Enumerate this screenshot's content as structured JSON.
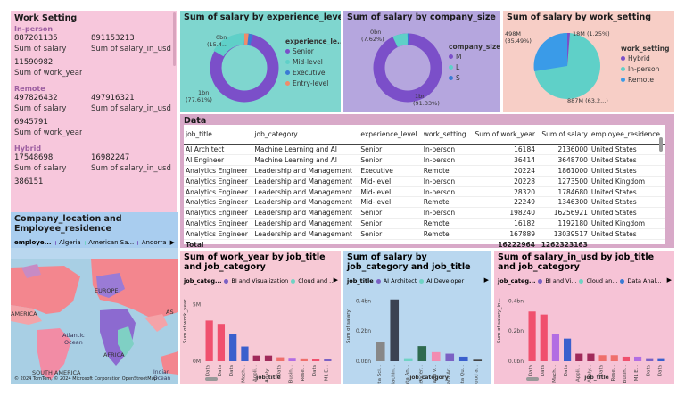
{
  "work_setting": {
    "title": "Work Setting",
    "groups": [
      {
        "name": "In-person",
        "salary": "887201135",
        "salary_in_usd": "891153213",
        "salary_label": "Sum of salary",
        "usd_label": "Sum of salary_in_usd",
        "work_year": "11590982",
        "work_year_label": "Sum of work_year"
      },
      {
        "name": "Remote",
        "salary": "497826432",
        "salary_in_usd": "497916321",
        "salary_label": "Sum of salary",
        "usd_label": "Sum of salary_in_usd",
        "work_year": "6945791",
        "work_year_label": "Sum of work_year"
      },
      {
        "name": "Hybrid",
        "salary": "17548698",
        "salary_in_usd": "16982247",
        "salary_label": "Sum of salary",
        "usd_label": "Sum of salary_in_usd",
        "work_year": "386151",
        "work_year_label": ""
      }
    ]
  },
  "map": {
    "title": "Company_location and Employee_residence",
    "legend_label": "employe...",
    "legend": [
      {
        "name": "Algeria",
        "color": "#7b61c4"
      },
      {
        "name": "American Sa...",
        "color": "#6fd3c4"
      },
      {
        "name": "Andorra",
        "color": "#7b61c4"
      }
    ],
    "labels": {
      "america": "AMERICA",
      "europe": "EUROPE",
      "africa": "AFRICA",
      "south_america": "SOUTH AMERICA",
      "asia": "AS",
      "atlantic": "Atlantic",
      "ocean": "Ocean",
      "indian": "Indian",
      "indian_ocean": "Ocean",
      "copyright": "© 2024 TomTom, © 2024 Microsoft Corporation  OpenStreetMap"
    }
  },
  "donut_exp": {
    "title": "Sum of salary by experience_level",
    "legend_title": "experience_le...",
    "labels": {
      "top": "0bn",
      "top2": "(15.4...",
      "bottom": "1bn",
      "bottom2": "(77.61%)"
    },
    "items": [
      {
        "name": "Senior",
        "color": "#7b4fc9"
      },
      {
        "name": "Mid-level",
        "color": "#5fd0c8"
      },
      {
        "name": "Executive",
        "color": "#3a7bd5"
      },
      {
        "name": "Entry-level",
        "color": "#f08c6a"
      }
    ]
  },
  "donut_size": {
    "title": "Sum of salary by company_size",
    "legend_title": "company_size",
    "labels": {
      "top": "0bn",
      "top2": "(7.62%)",
      "bottom": "1bn",
      "bottom2": "(91.33%)"
    },
    "items": [
      {
        "name": "M",
        "color": "#7b4fc9"
      },
      {
        "name": "L",
        "color": "#5fd0c8"
      },
      {
        "name": "S",
        "color": "#3a7bd5"
      }
    ]
  },
  "donut_setting": {
    "title": "Sum of salary by work_setting",
    "legend_title": "work_setting",
    "labels": {
      "left": "498M",
      "left2": "(35.49%)",
      "top": "18M (1.25%)",
      "bottom": "887M (63.2...)"
    },
    "items": [
      {
        "name": "Hybrid",
        "color": "#7b4fc9"
      },
      {
        "name": "In-person",
        "color": "#5fd0c8"
      },
      {
        "name": "Remote",
        "color": "#3a9be8"
      }
    ]
  },
  "table": {
    "title": "Data",
    "columns": [
      "job_title",
      "job_category",
      "experience_level",
      "work_setting",
      "Sum of work_year",
      "Sum of salary",
      "employee_residence"
    ],
    "rows": [
      [
        "AI Architect",
        "Machine Learning and AI",
        "Senior",
        "In-person",
        "16184",
        "2136000",
        "United States"
      ],
      [
        "AI Engineer",
        "Machine Learning and AI",
        "Senior",
        "In-person",
        "36414",
        "3648700",
        "United States"
      ],
      [
        "Analytics Engineer",
        "Leadership and Management",
        "Executive",
        "Remote",
        "20224",
        "1861000",
        "United States"
      ],
      [
        "Analytics Engineer",
        "Leadership and Management",
        "Mid-level",
        "In-person",
        "20228",
        "1273500",
        "United Kingdom"
      ],
      [
        "Analytics Engineer",
        "Leadership and Management",
        "Mid-level",
        "In-person",
        "28320",
        "1784680",
        "United States"
      ],
      [
        "Analytics Engineer",
        "Leadership and Management",
        "Mid-level",
        "Remote",
        "22249",
        "1346300",
        "United States"
      ],
      [
        "Analytics Engineer",
        "Leadership and Management",
        "Senior",
        "In-person",
        "198240",
        "16256921",
        "United States"
      ],
      [
        "Analytics Engineer",
        "Leadership and Management",
        "Senior",
        "Remote",
        "16182",
        "1192180",
        "United Kingdom"
      ],
      [
        "Analytics Engineer",
        "Leadership and Management",
        "Senior",
        "Remote",
        "167889",
        "13039517",
        "United States"
      ]
    ],
    "total_label": "Total",
    "total_work_year": "16222964",
    "total_salary": "1262323163"
  },
  "bar_work_year": {
    "title": "Sum of work_year by job_title and job_category",
    "legend_label": "job_categ...",
    "legend": [
      {
        "name": "BI and Visualization",
        "color": "#7b61c4"
      },
      {
        "name": "Cloud and ...",
        "color": "#6fd3c4"
      }
    ],
    "ylabel": "Sum of work_year",
    "xlabel": "job_title",
    "yticks": [
      "5M",
      "0M"
    ],
    "xticks": [
      "Data",
      "Data",
      "Data",
      "Mach...",
      "Appli...",
      "Analy...",
      "Data",
      "Busin...",
      "Rese...",
      "Data",
      "ML E..."
    ]
  },
  "bar_salary_cat": {
    "title": "Sum of salary by job_category and job_title",
    "legend_label": "job_title",
    "legend": [
      {
        "name": "AI Architect",
        "color": "#7b61c4"
      },
      {
        "name": "AI Developer",
        "color": "#6fd3c4"
      }
    ],
    "ylabel": "Sum of salary",
    "xlabel": "job_category",
    "yticks": [
      "0.4bn",
      "0.2bn",
      "0.0bn"
    ],
    "xticks": [
      "Data Sci...",
      "Machin...",
      "Data An...",
      "Leader...",
      "BI and V...",
      "Data Ar...",
      "Data Qu...",
      "Cloud a..."
    ]
  },
  "bar_usd": {
    "title": "Sum of salary_in_usd by job_title and job_category",
    "legend_label": "job_categ...",
    "legend": [
      {
        "name": "BI and Vi...",
        "color": "#7b61c4"
      },
      {
        "name": "Cloud an...",
        "color": "#6fd3c4"
      },
      {
        "name": "Data Anal...",
        "color": "#3a7bd5"
      }
    ],
    "ylabel": "Sum of salary_in...",
    "xlabel": "job_title",
    "yticks": [
      "0.4bn",
      "0.2bn",
      "0.0bn"
    ],
    "xticks": [
      "Data",
      "Data",
      "Mach...",
      "Data",
      "Appli...",
      "Analy...",
      "Data",
      "Rese...",
      "Busin...",
      "ML E...",
      "Data",
      "Data"
    ]
  },
  "chart_data": [
    {
      "type": "pie",
      "title": "Sum of salary by experience_level",
      "categories": [
        "Senior",
        "Mid-level",
        "Executive",
        "Entry-level"
      ],
      "values": [
        77.61,
        15.4,
        4.5,
        2.49
      ]
    },
    {
      "type": "pie",
      "title": "Sum of salary by company_size",
      "categories": [
        "M",
        "L",
        "S"
      ],
      "values": [
        91.33,
        7.62,
        1.05
      ]
    },
    {
      "type": "pie",
      "title": "Sum of salary by work_setting",
      "categories": [
        "In-person",
        "Remote",
        "Hybrid"
      ],
      "values": [
        63.26,
        35.49,
        1.25
      ]
    },
    {
      "type": "bar",
      "title": "Sum of work_year by job_title and job_category",
      "categories": [
        "Data",
        "Data",
        "Data",
        "Mach...",
        "Appli...",
        "Analy...",
        "Data",
        "Busin...",
        "Rese...",
        "Data",
        "ML E..."
      ],
      "values": [
        3.6,
        3.3,
        2.4,
        1.3,
        0.5,
        0.5,
        0.35,
        0.3,
        0.25,
        0.22,
        0.2
      ],
      "colors": [
        "#f0506e",
        "#f0506e",
        "#3a5fcd",
        "#3a5fcd",
        "#a02a5a",
        "#a02a5a",
        "#ef6f6c",
        "#b26de3",
        "#ef6f6c",
        "#f0506e",
        "#7b61c4"
      ],
      "ylabel": "Sum of work_year",
      "xlabel": "job_title",
      "ylim": [
        0,
        6
      ]
    },
    {
      "type": "bar",
      "title": "Sum of salary by job_category and job_title",
      "categories": [
        "Data Sci...",
        "Machin...",
        "Data An...",
        "Leader...",
        "BI and V...",
        "Data Ar...",
        "Data Qu...",
        "Cloud a..."
      ],
      "values": [
        0.13,
        0.41,
        0.02,
        0.1,
        0.06,
        0.05,
        0.03,
        0.01
      ],
      "colors": [
        "#888888",
        "#3b4252",
        "#6fd3c4",
        "#2f6b4f",
        "#f28cb1",
        "#7b61c4",
        "#3a5fcd",
        "#444444"
      ],
      "ylabel": "Sum of salary",
      "xlabel": "job_category",
      "ylim": [
        0,
        0.45
      ]
    },
    {
      "type": "bar",
      "title": "Sum of salary_in_usd by job_title and job_category",
      "categories": [
        "Data",
        "Data",
        "Mach...",
        "Data",
        "Appli...",
        "Analy...",
        "Data",
        "Rese...",
        "Busin...",
        "ML E...",
        "Data",
        "Data"
      ],
      "values": [
        0.33,
        0.31,
        0.18,
        0.15,
        0.05,
        0.05,
        0.04,
        0.04,
        0.03,
        0.03,
        0.02,
        0.02
      ],
      "colors": [
        "#f0506e",
        "#f0506e",
        "#b26de3",
        "#3a5fcd",
        "#a02a5a",
        "#a02a5a",
        "#ef6f6c",
        "#ef6f6c",
        "#f0506e",
        "#b26de3",
        "#7b61c4",
        "#3a5fcd"
      ],
      "ylabel": "Sum of salary_in...",
      "xlabel": "job_title",
      "ylim": [
        0,
        0.45
      ]
    }
  ]
}
